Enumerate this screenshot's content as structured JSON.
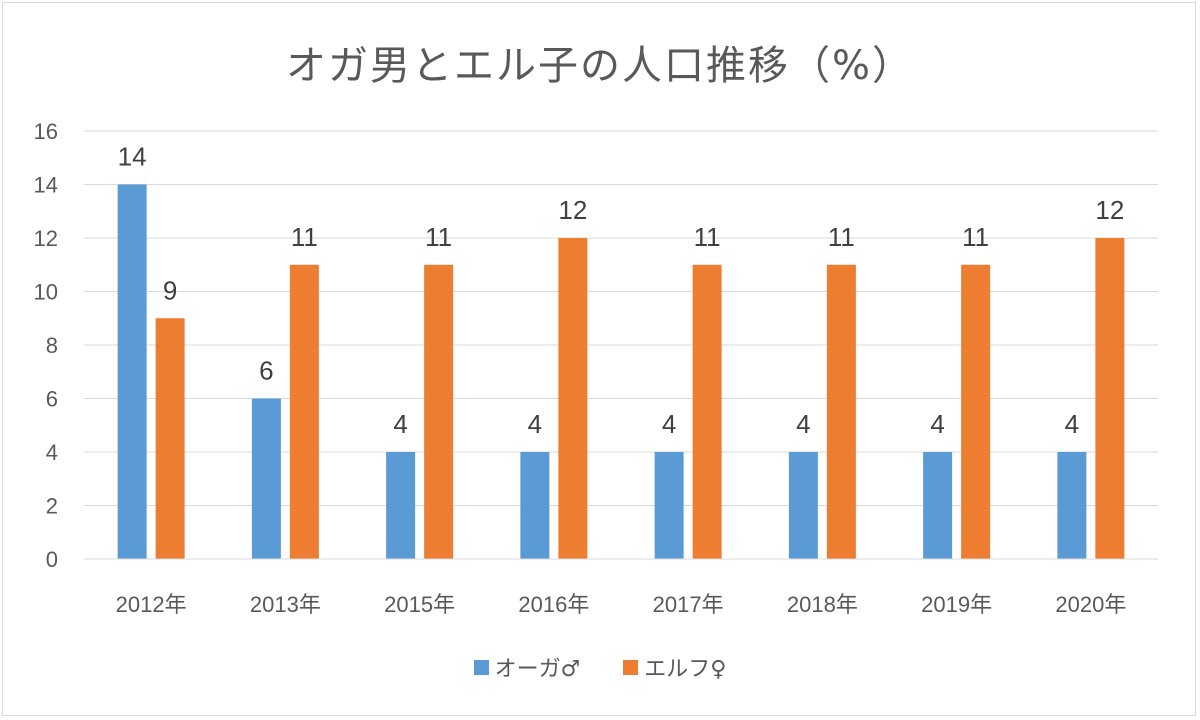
{
  "chart_data": {
    "type": "bar",
    "title": "オガ男とエル子の人口推移（%）",
    "categories": [
      "2012年",
      "2013年",
      "2015年",
      "2016年",
      "2017年",
      "2018年",
      "2019年",
      "2020年"
    ],
    "series": [
      {
        "name": "オーガ♂",
        "color": "#5b9bd5",
        "values": [
          14,
          6,
          4,
          4,
          4,
          4,
          4,
          4
        ]
      },
      {
        "name": "エルフ♀",
        "color": "#ed7d31",
        "values": [
          9,
          11,
          11,
          12,
          11,
          11,
          11,
          12
        ]
      }
    ],
    "ylim": [
      0,
      16
    ],
    "yticks": [
      0,
      2,
      4,
      6,
      8,
      10,
      12,
      14,
      16
    ],
    "grid": true,
    "data_labels": true,
    "legend_position": "bottom"
  }
}
